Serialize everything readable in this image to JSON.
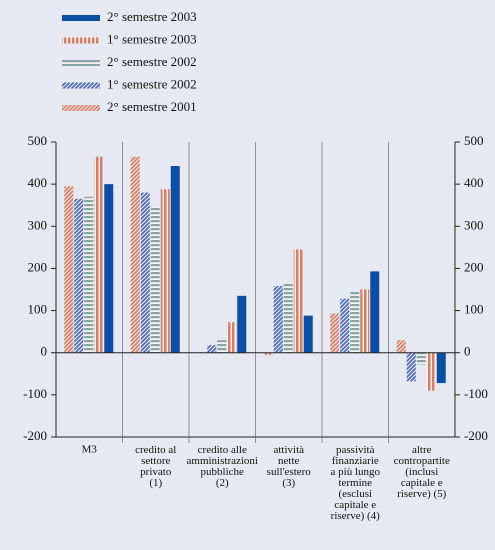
{
  "chart_data": {
    "type": "bar",
    "categories": [
      "M3",
      "credito al\nsettore\nprivato\n(1)",
      "credito alle\namministrazioni\npubbliche\n(2)",
      "attività\nnette\nsull'estero\n(3)",
      "passività\nfinanziarie\na più lungo\ntermine\n(esclusi\ncapitale e\nriserve) (4)",
      "altre\ncontropartite\n(inclusi\ncapitale e\nriserve) (5)"
    ],
    "series": [
      {
        "name": "2° semestre 2003",
        "color": "#0b4ea2",
        "pattern": "solid",
        "values": [
          400,
          443,
          135,
          88,
          193,
          -72
        ]
      },
      {
        "name": "1° semestre 2003",
        "color": "#d77e68",
        "pattern": "vertical",
        "values": [
          465,
          388,
          72,
          245,
          150,
          -90
        ]
      },
      {
        "name": "2° semestre 2002",
        "color": "#86a3a6",
        "pattern": "horizontal",
        "values": [
          370,
          345,
          35,
          165,
          145,
          -28
        ]
      },
      {
        "name": "1° semestre 2002",
        "color": "#4f6cc0",
        "pattern": "diagonal",
        "values": [
          365,
          380,
          18,
          158,
          128,
          -68
        ]
      },
      {
        "name": "2° semestre 2001",
        "color": "#d77e68",
        "pattern": "diagonal",
        "values": [
          395,
          465,
          0,
          -5,
          93,
          30
        ]
      }
    ],
    "ylim": [
      -200,
      500
    ],
    "yticks": [
      -200,
      -100,
      0,
      100,
      200,
      300,
      400,
      500
    ],
    "legend": "top-left"
  }
}
